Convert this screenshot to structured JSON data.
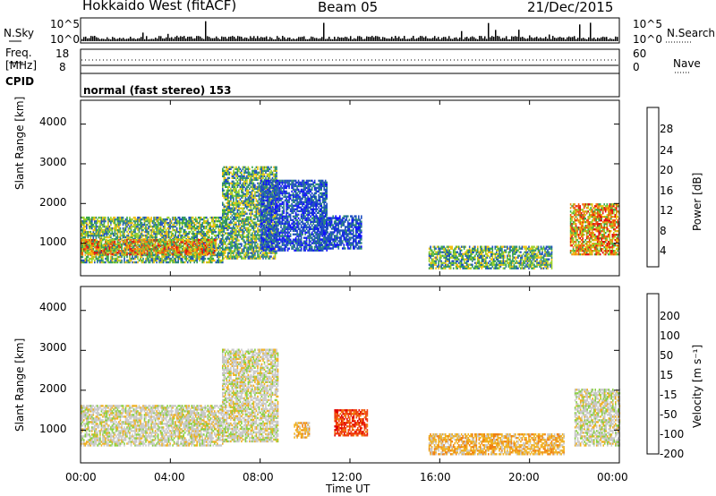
{
  "header": {
    "station": "Hokkaido West (fitACF)",
    "beam": "Beam 05",
    "date": "21/Dec/2015"
  },
  "top_panel": {
    "left_label": "N.Sky",
    "left_ticks": [
      "10^5",
      "10^0"
    ],
    "right_ticks": [
      "10^5",
      "10^0"
    ],
    "right_label": "N.Search",
    "freq_label": "Freq.",
    "freq_unit": "[MHz]",
    "freq_ticks": [
      "18",
      "8"
    ],
    "nave_ticks": [
      "60",
      "0"
    ],
    "nave_label": "Nave",
    "cpid_label": "CPID",
    "cpid_text": "normal (fast stereo) 153"
  },
  "chart_data": [
    {
      "type": "heatmap",
      "name": "power-panel",
      "ylabel": "Slant Range [km]",
      "xlabel": "",
      "x_ticks": [
        "00:00",
        "04:00",
        "08:00",
        "12:00",
        "16:00",
        "20:00",
        "00:00"
      ],
      "y_ticks": [
        "1000",
        "2000",
        "3000",
        "4000"
      ],
      "ylim": [
        180,
        4600
      ],
      "xlim_hours": [
        0,
        24
      ],
      "colorbar": {
        "label": "Power [dB]",
        "ticks": [
          "4",
          "8",
          "12",
          "16",
          "20",
          "24",
          "28"
        ],
        "colors": [
          "#1010ff",
          "#2050c0",
          "#2e8a7a",
          "#38a84a",
          "#9ad02a",
          "#f0c010",
          "#f08a10",
          "#f05010",
          "#e01010"
        ]
      },
      "echo_regions": [
        {
          "t0": 0.0,
          "t1": 6.3,
          "r0": 500,
          "r1": 1650,
          "level": "mid"
        },
        {
          "t0": 0.0,
          "t1": 6.0,
          "r0": 700,
          "r1": 1100,
          "level": "high"
        },
        {
          "t0": 6.3,
          "t1": 8.7,
          "r0": 600,
          "r1": 2900,
          "level": "mid"
        },
        {
          "t0": 8.0,
          "t1": 11.0,
          "r0": 800,
          "r1": 2600,
          "level": "low"
        },
        {
          "t0": 10.5,
          "t1": 12.5,
          "r0": 850,
          "r1": 1700,
          "level": "low"
        },
        {
          "t0": 15.5,
          "t1": 21.0,
          "r0": 350,
          "r1": 900,
          "level": "mid"
        },
        {
          "t0": 21.8,
          "t1": 24.0,
          "r0": 700,
          "r1": 2000,
          "level": "high"
        }
      ]
    },
    {
      "type": "heatmap",
      "name": "velocity-panel",
      "ylabel": "Slant Range [km]",
      "xlabel": "Time UT",
      "x_ticks": [
        "00:00",
        "04:00",
        "08:00",
        "12:00",
        "16:00",
        "20:00",
        "00:00"
      ],
      "y_ticks": [
        "1000",
        "2000",
        "3000",
        "4000"
      ],
      "ylim": [
        180,
        4600
      ],
      "xlim_hours": [
        0,
        24
      ],
      "colorbar": {
        "label": "Velocity [m s⁻¹]",
        "ticks": [
          "200",
          "100",
          "50",
          "15",
          "-15",
          "-50",
          "-100",
          "-200"
        ],
        "colors": [
          "#2040c0",
          "#2e7a6a",
          "#38a040",
          "#88d040",
          "#c8c8c8",
          "#f0b020",
          "#f08010",
          "#f04010",
          "#e00000"
        ]
      },
      "echo_regions": [
        {
          "t0": 0.0,
          "t1": 6.3,
          "r0": 600,
          "r1": 1600,
          "level": "ground"
        },
        {
          "t0": 6.3,
          "t1": 8.8,
          "r0": 700,
          "r1": 3000,
          "level": "ground"
        },
        {
          "t0": 9.5,
          "t1": 10.2,
          "r0": 800,
          "r1": 1200,
          "level": "neg50"
        },
        {
          "t0": 11.3,
          "t1": 12.8,
          "r0": 850,
          "r1": 1500,
          "level": "neg200"
        },
        {
          "t0": 15.5,
          "t1": 21.5,
          "r0": 380,
          "r1": 900,
          "level": "neg50"
        },
        {
          "t0": 22.0,
          "t1": 24.0,
          "r0": 600,
          "r1": 2000,
          "level": "ground"
        }
      ]
    }
  ]
}
